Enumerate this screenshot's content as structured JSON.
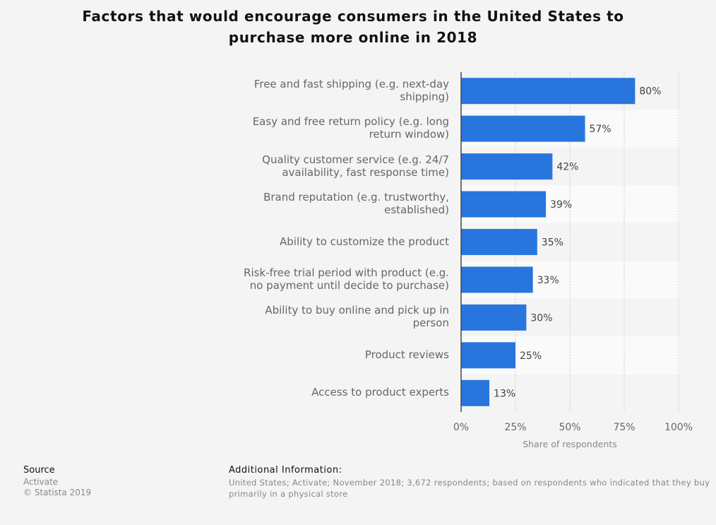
{
  "chart_data": {
    "type": "bar",
    "orientation": "horizontal",
    "title": "Factors that would encourage consumers in the United States to purchase more online in 2018",
    "categories": [
      "Free and fast shipping (e.g. next-day shipping)",
      "Easy and free return policy (e.g. long return window)",
      "Quality customer service (e.g. 24/7 availability, fast response time)",
      "Brand reputation (e.g. trustworthy, established)",
      "Ability to customize the product",
      "Risk-free trial period with product (e.g. no payment until decide to purchase)",
      "Ability to buy online and pick up in person",
      "Product reviews",
      "Access to product experts"
    ],
    "values": [
      80,
      57,
      42,
      39,
      35,
      33,
      30,
      25,
      13
    ],
    "data_labels": [
      "80%",
      "57%",
      "42%",
      "39%",
      "35%",
      "33%",
      "30%",
      "25%",
      "13%"
    ],
    "xlabel": "Share of respondents",
    "ylabel": "",
    "xlim": [
      0,
      100
    ],
    "ticks": [
      "0%",
      "25%",
      "50%",
      "75%",
      "100%"
    ],
    "tick_values": [
      0,
      25,
      50,
      75,
      100
    ],
    "grid": true,
    "bar_color": "#2876dd"
  },
  "footer": {
    "source_heading": "Source",
    "source": "Activate",
    "copyright": "© Statista 2019",
    "additional_heading": "Additional Information:",
    "additional": "United States; Activate; November 2018; 3,672 respondents; based on respondents who indicated that they buy primarily in a physical store"
  }
}
